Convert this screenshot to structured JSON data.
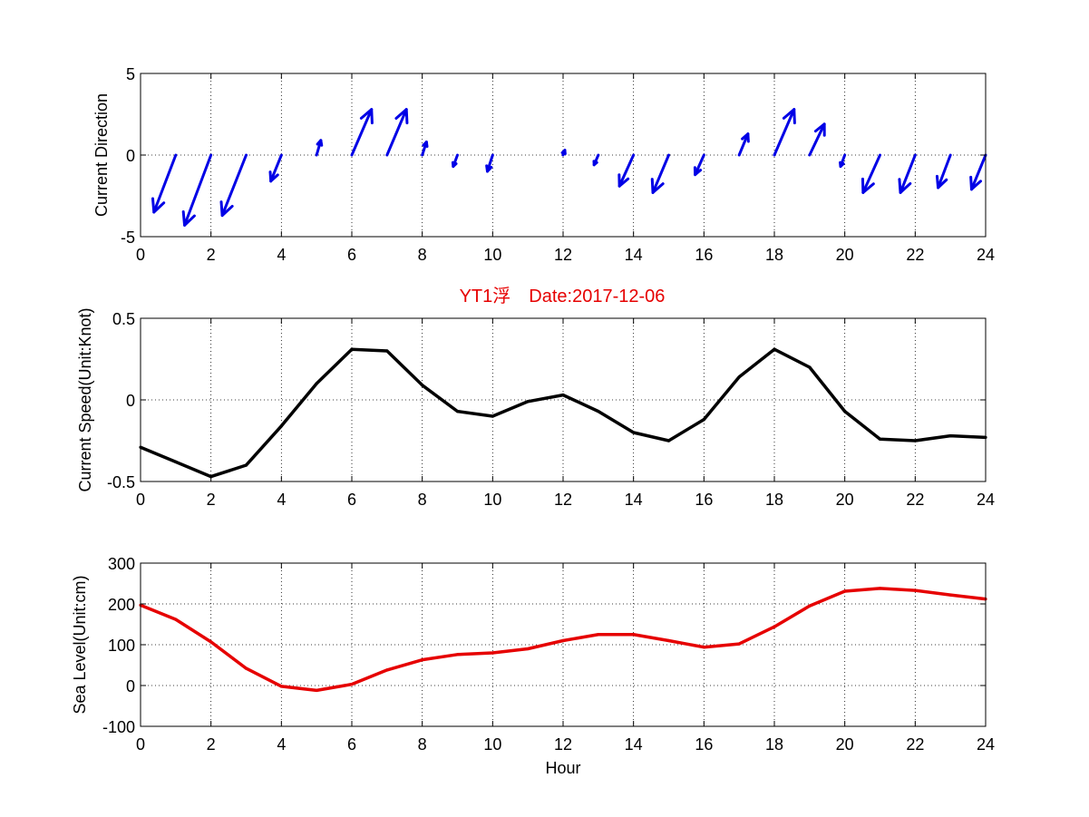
{
  "title": "YT1浮　Date:2017-12-06",
  "colors": {
    "title": "#e60000",
    "direction": "#0000e6",
    "speed": "#000000",
    "level": "#e60000",
    "axis": "#000000",
    "grid": "#000000"
  },
  "chart_data": [
    {
      "type": "quiver",
      "ylabel": "Current Direction",
      "xlabel": "",
      "xlim": [
        0,
        24
      ],
      "ylim": [
        -5,
        5
      ],
      "xticks": [
        0,
        2,
        4,
        6,
        8,
        10,
        12,
        14,
        16,
        18,
        20,
        22,
        24
      ],
      "yticks": [
        -5,
        0,
        5
      ],
      "grid": true,
      "x": [
        1,
        2,
        3,
        4,
        5,
        6,
        7,
        8,
        9,
        10,
        12,
        13,
        14,
        15,
        16,
        17,
        18,
        19,
        20,
        21,
        22,
        23,
        24
      ],
      "u": [
        -0.62,
        -0.75,
        -0.68,
        -0.3,
        0.12,
        0.56,
        0.55,
        0.12,
        -0.12,
        -0.15,
        0.05,
        -0.12,
        -0.4,
        -0.45,
        -0.25,
        0.25,
        0.56,
        0.42,
        -0.12,
        -0.48,
        -0.42,
        -0.35,
        -0.4
      ],
      "v": [
        -3.5,
        -4.3,
        -3.7,
        -1.6,
        0.9,
        2.8,
        2.8,
        0.8,
        -0.7,
        -1.0,
        0.3,
        -0.6,
        -1.9,
        -2.3,
        -1.2,
        1.3,
        2.8,
        1.9,
        -0.7,
        -2.3,
        -2.3,
        -2.0,
        -2.1
      ]
    },
    {
      "type": "line",
      "title": "YT1浮　Date:2017-12-06",
      "ylabel": "Current Speed(Unit:Knot)",
      "xlabel": "",
      "xlim": [
        0,
        24
      ],
      "ylim": [
        -0.5,
        0.5
      ],
      "xticks": [
        0,
        2,
        4,
        6,
        8,
        10,
        12,
        14,
        16,
        18,
        20,
        22,
        24
      ],
      "yticks": [
        -0.5,
        0,
        0.5
      ],
      "grid": true,
      "x": [
        0,
        1,
        2,
        3,
        4,
        5,
        6,
        7,
        8,
        9,
        10,
        11,
        12,
        13,
        14,
        15,
        16,
        17,
        18,
        19,
        20,
        21,
        22,
        23,
        24
      ],
      "y": [
        -0.29,
        -0.38,
        -0.47,
        -0.4,
        -0.16,
        0.1,
        0.31,
        0.3,
        0.09,
        -0.07,
        -0.1,
        -0.01,
        0.03,
        -0.07,
        -0.2,
        -0.25,
        -0.12,
        0.14,
        0.31,
        0.2,
        -0.07,
        -0.24,
        -0.25,
        -0.22,
        -0.23
      ]
    },
    {
      "type": "line",
      "ylabel": "Sea Level(Unit:cm)",
      "xlabel": "Hour",
      "xlim": [
        0,
        24
      ],
      "ylim": [
        -100,
        300
      ],
      "xticks": [
        0,
        2,
        4,
        6,
        8,
        10,
        12,
        14,
        16,
        18,
        20,
        22,
        24
      ],
      "yticks": [
        -100,
        0,
        100,
        200,
        300
      ],
      "grid": true,
      "x": [
        0,
        1,
        2,
        3,
        4,
        5,
        6,
        7,
        8,
        9,
        10,
        11,
        12,
        13,
        14,
        15,
        16,
        17,
        18,
        19,
        20,
        21,
        22,
        23,
        24
      ],
      "y": [
        197,
        162,
        107,
        42,
        -2,
        -12,
        3,
        38,
        63,
        76,
        80,
        90,
        110,
        125,
        125,
        110,
        94,
        102,
        144,
        195,
        231,
        238,
        233,
        222,
        212
      ]
    }
  ]
}
